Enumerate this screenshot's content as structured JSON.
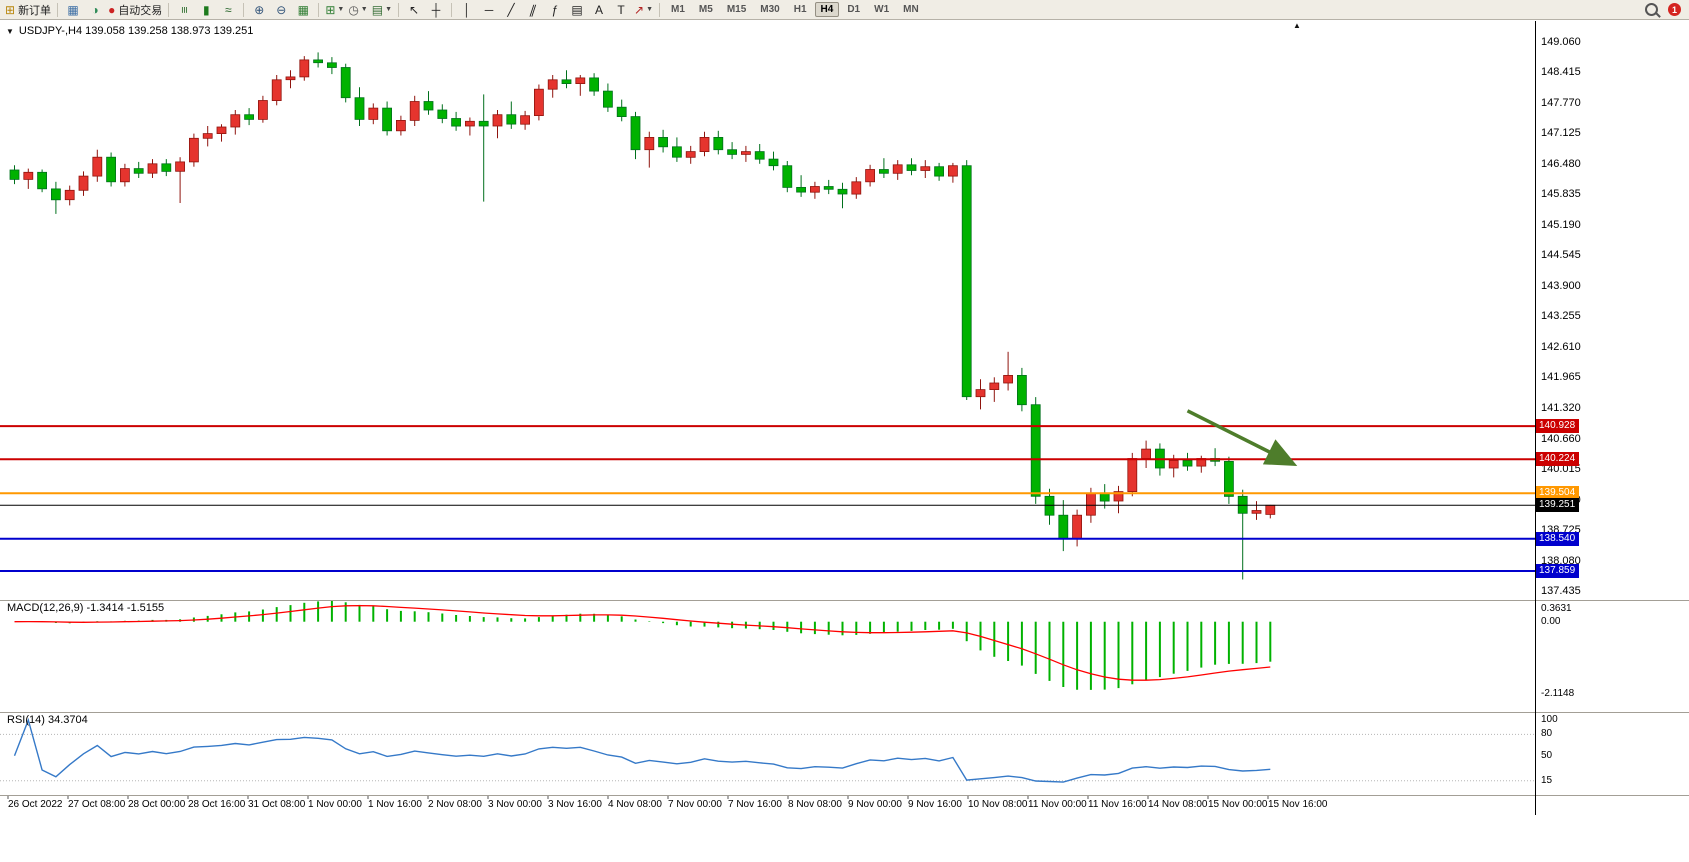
{
  "toolbar": {
    "buttons": [
      {
        "name": "new-order",
        "icon": "new-order",
        "label": "新订单"
      },
      {
        "sep": true
      },
      {
        "name": "chart-profile",
        "icon": "chart-profile"
      },
      {
        "name": "refresh",
        "icon": "refresh"
      },
      {
        "name": "auto-trading",
        "icon": "autotrade",
        "label": "自动交易"
      },
      {
        "sep": true
      },
      {
        "name": "bar-chart",
        "icon": "bar-chart"
      },
      {
        "name": "candlestick-chart",
        "icon": "candle-chart"
      },
      {
        "name": "line-chart",
        "icon": "line-chart"
      },
      {
        "sep": true
      },
      {
        "name": "zoom-in",
        "icon": "zoom-in"
      },
      {
        "name": "zoom-out",
        "icon": "zoom-out"
      },
      {
        "name": "tile-windows",
        "icon": "tile-windows"
      },
      {
        "sep": true
      },
      {
        "name": "new-chart",
        "icon": "new-chart",
        "dropdown": true
      },
      {
        "name": "periods",
        "icon": "clock",
        "dropdown": true
      },
      {
        "name": "templates",
        "icon": "templates",
        "dropdown": true
      },
      {
        "sep": true
      },
      {
        "name": "cursor",
        "icon": "cursor"
      },
      {
        "name": "crosshair",
        "icon": "crosshair"
      },
      {
        "sep": true
      },
      {
        "name": "vertical-line",
        "icon": "vline"
      },
      {
        "name": "horizontal-line",
        "icon": "hline"
      },
      {
        "name": "trendline",
        "icon": "trendline"
      },
      {
        "name": "equidistant-channel",
        "icon": "channel"
      },
      {
        "name": "fibonacci",
        "icon": "fibonacci"
      },
      {
        "name": "shapes",
        "icon": "shapes"
      },
      {
        "name": "text",
        "icon": "text"
      },
      {
        "name": "text-label",
        "icon": "text-label"
      },
      {
        "name": "arrow-tools",
        "icon": "arrow-tools",
        "dropdown": true
      },
      {
        "sep": true
      }
    ],
    "timeframes": [
      "M1",
      "M5",
      "M15",
      "M30",
      "H1",
      "H4",
      "D1",
      "W1",
      "MN"
    ],
    "active_timeframe": "H4",
    "notification_badge": "1"
  },
  "chart_title": {
    "collapse_icon": "▼",
    "text": "USDJPY-,H4 139.058 139.258 138.973 139.251"
  },
  "chart_data": {
    "type": "candlestick",
    "symbol": "USDJPY-",
    "timeframe": "H4",
    "current_bar": {
      "open": 139.058,
      "high": 139.258,
      "low": 138.973,
      "close": 139.251
    },
    "up_color": "#e5342e",
    "down_color": "#00b200",
    "ylim": [
      137.27,
      149.36
    ],
    "price_axis_labels": [
      "149.060",
      "148.415",
      "147.770",
      "147.125",
      "146.480",
      "145.835",
      "145.190",
      "144.545",
      "143.900",
      "143.255",
      "142.610",
      "141.965",
      "141.320",
      "140.660",
      "140.015",
      "139.370",
      "138.725",
      "138.080",
      "137.435"
    ],
    "time_axis_labels": [
      "26 Oct 2022",
      "27 Oct 08:00",
      "28 Oct 00:00",
      "28 Oct 16:00",
      "31 Oct 08:00",
      "1 Nov 00:00",
      "1 Nov 16:00",
      "2 Nov 08:00",
      "3 Nov 00:00",
      "3 Nov 16:00",
      "4 Nov 08:00",
      "7 Nov 00:00",
      "7 Nov 16:00",
      "8 Nov 08:00",
      "9 Nov 00:00",
      "9 Nov 16:00",
      "10 Nov 08:00",
      "11 Nov 00:00",
      "11 Nov 16:00",
      "14 Nov 08:00",
      "15 Nov 00:00",
      "15 Nov 16:00"
    ],
    "candles": [
      [
        146.35,
        146.45,
        146.05,
        146.15
      ],
      [
        146.15,
        146.38,
        145.95,
        146.3
      ],
      [
        146.3,
        146.36,
        145.88,
        145.95
      ],
      [
        145.95,
        146.1,
        145.42,
        145.72
      ],
      [
        145.72,
        146.02,
        145.6,
        145.92
      ],
      [
        145.92,
        146.32,
        145.8,
        146.22
      ],
      [
        146.22,
        146.78,
        146.1,
        146.62
      ],
      [
        146.62,
        146.72,
        146.0,
        146.1
      ],
      [
        146.1,
        146.48,
        146.0,
        146.38
      ],
      [
        146.38,
        146.52,
        146.18,
        146.28
      ],
      [
        146.28,
        146.58,
        146.18,
        146.48
      ],
      [
        146.48,
        146.58,
        146.22,
        146.32
      ],
      [
        146.32,
        146.62,
        145.65,
        146.52
      ],
      [
        146.52,
        147.12,
        146.42,
        147.02
      ],
      [
        147.02,
        147.28,
        146.85,
        147.12
      ],
      [
        147.12,
        147.32,
        146.95,
        147.26
      ],
      [
        147.26,
        147.62,
        147.1,
        147.52
      ],
      [
        147.52,
        147.66,
        147.3,
        147.42
      ],
      [
        147.42,
        147.92,
        147.35,
        147.82
      ],
      [
        147.82,
        148.36,
        147.72,
        148.26
      ],
      [
        148.26,
        148.46,
        148.08,
        148.32
      ],
      [
        148.32,
        148.76,
        148.24,
        148.68
      ],
      [
        148.68,
        148.84,
        148.52,
        148.62
      ],
      [
        148.62,
        148.74,
        148.38,
        148.52
      ],
      [
        148.52,
        148.6,
        147.78,
        147.88
      ],
      [
        147.88,
        148.1,
        147.28,
        147.42
      ],
      [
        147.42,
        147.76,
        147.32,
        147.66
      ],
      [
        147.66,
        147.8,
        147.08,
        147.18
      ],
      [
        147.18,
        147.5,
        147.08,
        147.4
      ],
      [
        147.4,
        147.92,
        147.28,
        147.8
      ],
      [
        147.8,
        148.02,
        147.52,
        147.62
      ],
      [
        147.62,
        147.74,
        147.34,
        147.44
      ],
      [
        147.44,
        147.58,
        147.18,
        147.28
      ],
      [
        147.28,
        147.46,
        147.08,
        147.38
      ],
      [
        147.38,
        147.95,
        145.68,
        147.28
      ],
      [
        147.28,
        147.62,
        147.02,
        147.52
      ],
      [
        147.52,
        147.8,
        147.22,
        147.32
      ],
      [
        147.32,
        147.6,
        147.2,
        147.5
      ],
      [
        147.5,
        148.16,
        147.4,
        148.06
      ],
      [
        148.06,
        148.36,
        147.88,
        148.26
      ],
      [
        148.26,
        148.46,
        148.08,
        148.18
      ],
      [
        148.18,
        148.36,
        147.92,
        148.3
      ],
      [
        148.3,
        148.4,
        147.92,
        148.02
      ],
      [
        148.02,
        148.18,
        147.58,
        147.68
      ],
      [
        147.68,
        147.84,
        147.38,
        147.48
      ],
      [
        147.48,
        147.58,
        146.58,
        146.78
      ],
      [
        146.78,
        147.16,
        146.4,
        147.04
      ],
      [
        147.04,
        147.2,
        146.72,
        146.84
      ],
      [
        146.84,
        147.04,
        146.52,
        146.62
      ],
      [
        146.62,
        146.86,
        146.48,
        146.74
      ],
      [
        146.74,
        147.16,
        146.64,
        147.04
      ],
      [
        147.04,
        147.18,
        146.68,
        146.78
      ],
      [
        146.78,
        146.94,
        146.58,
        146.68
      ],
      [
        146.68,
        146.86,
        146.52,
        146.74
      ],
      [
        146.74,
        146.9,
        146.48,
        146.58
      ],
      [
        146.58,
        146.74,
        146.34,
        146.44
      ],
      [
        146.44,
        146.54,
        145.88,
        145.98
      ],
      [
        145.98,
        146.24,
        145.78,
        145.88
      ],
      [
        145.88,
        146.1,
        145.74,
        146.0
      ],
      [
        146.0,
        146.14,
        145.84,
        145.94
      ],
      [
        145.94,
        146.08,
        145.54,
        145.84
      ],
      [
        145.84,
        146.2,
        145.74,
        146.1
      ],
      [
        146.1,
        146.46,
        146.0,
        146.36
      ],
      [
        146.36,
        146.6,
        146.18,
        146.28
      ],
      [
        146.28,
        146.56,
        146.14,
        146.46
      ],
      [
        146.46,
        146.6,
        146.24,
        146.34
      ],
      [
        146.34,
        146.56,
        146.18,
        146.42
      ],
      [
        146.42,
        146.5,
        146.12,
        146.22
      ],
      [
        146.22,
        146.5,
        146.08,
        146.44
      ],
      [
        146.44,
        146.56,
        141.48,
        141.55
      ],
      [
        141.55,
        141.92,
        141.28,
        141.7
      ],
      [
        141.7,
        141.96,
        141.44,
        141.84
      ],
      [
        141.84,
        142.5,
        141.68,
        142.0
      ],
      [
        142.0,
        142.16,
        141.24,
        141.38
      ],
      [
        141.38,
        141.54,
        139.28,
        139.44
      ],
      [
        139.44,
        139.6,
        138.84,
        139.04
      ],
      [
        139.04,
        139.36,
        138.28,
        138.54
      ],
      [
        138.54,
        139.16,
        138.38,
        139.04
      ],
      [
        139.04,
        139.62,
        138.88,
        139.5
      ],
      [
        139.5,
        139.7,
        139.18,
        139.34
      ],
      [
        139.34,
        139.66,
        139.08,
        139.54
      ],
      [
        139.54,
        140.36,
        139.44,
        140.24
      ],
      [
        140.24,
        140.62,
        140.04,
        140.44
      ],
      [
        140.44,
        140.56,
        139.88,
        140.04
      ],
      [
        140.04,
        140.32,
        139.84,
        140.2
      ],
      [
        140.2,
        140.36,
        139.98,
        140.08
      ],
      [
        140.08,
        140.3,
        139.94,
        140.24
      ],
      [
        140.24,
        140.46,
        140.08,
        140.18
      ],
      [
        140.18,
        140.28,
        139.28,
        139.44
      ],
      [
        139.44,
        139.58,
        137.68,
        139.08
      ],
      [
        139.08,
        139.34,
        138.94,
        139.14
      ],
      [
        139.058,
        139.258,
        138.973,
        139.251
      ]
    ],
    "horizontal_lines": [
      {
        "name": "resistance-line-1",
        "price": 140.928,
        "label": "140.928",
        "color": "#cc0000",
        "width": 2
      },
      {
        "name": "resistance-line-2",
        "price": 140.224,
        "label": "140.224",
        "color": "#cc0000",
        "width": 2
      },
      {
        "name": "pivot-line",
        "price": 139.504,
        "label": "139.504",
        "color": "#ff9800",
        "width": 2
      },
      {
        "name": "bid-price-line",
        "price": 139.251,
        "label": "139.251",
        "color": "#000000",
        "width": 1
      },
      {
        "name": "support-line-1",
        "price": 138.54,
        "label": "138.540",
        "color": "#0000cd",
        "width": 2
      },
      {
        "name": "support-line-2",
        "price": 137.859,
        "label": "137.859",
        "color": "#0000cd",
        "width": 2
      }
    ],
    "arrow_annotation": {
      "from_bar": 85,
      "from_price": 141.25,
      "to_bar": 92.5,
      "to_price": 140.15,
      "color": "#4e7d2b",
      "width": 3.5
    },
    "indicators": {
      "macd": {
        "label": "MACD(12,26,9) -1.3414 -1.5155",
        "fast": 12,
        "slow": 26,
        "signal": 9,
        "main_value": "-1.3414",
        "signal_value": "-1.5155",
        "scale_marks": [
          {
            "v": 0.3631,
            "label": "0.3631"
          },
          {
            "v": 0,
            "label": "0.00"
          },
          {
            "v": -2.1148,
            "label": "-2.1148"
          }
        ],
        "histogram_color": "#00b200",
        "signal_color": "#ff0000"
      },
      "rsi": {
        "label": "RSI(14) 34.3704",
        "period": 14,
        "value": "34.3704",
        "scale_marks": [
          {
            "v": 100,
            "label": "100"
          },
          {
            "v": 80,
            "label": "80"
          },
          {
            "v": 50,
            "label": "50"
          },
          {
            "v": 15,
            "label": "15"
          }
        ],
        "levels": [
          80,
          15
        ],
        "line_color": "#3579c8"
      }
    }
  }
}
